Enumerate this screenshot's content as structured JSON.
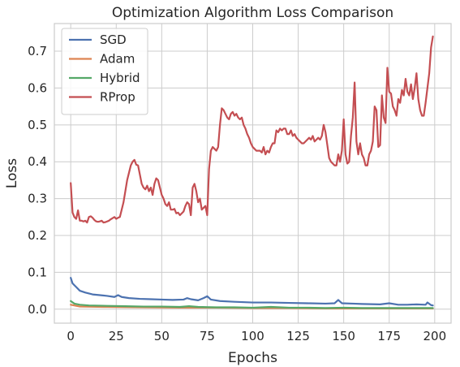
{
  "chart_data": {
    "type": "line",
    "title": "Optimization Algorithm Loss Comparison",
    "xlabel": "Epochs",
    "ylabel": "Loss",
    "xlim": [
      -9,
      209
    ],
    "ylim": [
      -0.038,
      0.775
    ],
    "xticks": [
      0,
      25,
      50,
      75,
      100,
      125,
      150,
      175,
      200
    ],
    "yticks": [
      0.0,
      0.1,
      0.2,
      0.3,
      0.4,
      0.5,
      0.6,
      0.7
    ],
    "ytick_labels": [
      "0.0",
      "0.1",
      "0.2",
      "0.3",
      "0.4",
      "0.5",
      "0.6",
      "0.7"
    ],
    "grid": true,
    "legend_position": "top-left",
    "series": [
      {
        "name": "SGD",
        "color": "#4c72b0",
        "points": [
          [
            0,
            0.085
          ],
          [
            1,
            0.07
          ],
          [
            3,
            0.06
          ],
          [
            5,
            0.05
          ],
          [
            8,
            0.045
          ],
          [
            12,
            0.04
          ],
          [
            16,
            0.038
          ],
          [
            20,
            0.036
          ],
          [
            24,
            0.033
          ],
          [
            26,
            0.038
          ],
          [
            28,
            0.033
          ],
          [
            32,
            0.03
          ],
          [
            38,
            0.028
          ],
          [
            44,
            0.027
          ],
          [
            50,
            0.026
          ],
          [
            56,
            0.025
          ],
          [
            62,
            0.026
          ],
          [
            64,
            0.03
          ],
          [
            66,
            0.027
          ],
          [
            70,
            0.024
          ],
          [
            73,
            0.03
          ],
          [
            75,
            0.035
          ],
          [
            77,
            0.026
          ],
          [
            82,
            0.022
          ],
          [
            90,
            0.02
          ],
          [
            100,
            0.018
          ],
          [
            110,
            0.018
          ],
          [
            120,
            0.017
          ],
          [
            130,
            0.016
          ],
          [
            140,
            0.015
          ],
          [
            145,
            0.016
          ],
          [
            147,
            0.025
          ],
          [
            149,
            0.016
          ],
          [
            155,
            0.015
          ],
          [
            160,
            0.014
          ],
          [
            170,
            0.013
          ],
          [
            175,
            0.016
          ],
          [
            180,
            0.012
          ],
          [
            185,
            0.012
          ],
          [
            190,
            0.013
          ],
          [
            195,
            0.012
          ],
          [
            196,
            0.018
          ],
          [
            198,
            0.011
          ],
          [
            199,
            0.01
          ]
        ]
      },
      {
        "name": "Adam",
        "color": "#dd8452",
        "points": [
          [
            0,
            0.012
          ],
          [
            5,
            0.007
          ],
          [
            20,
            0.006
          ],
          [
            40,
            0.005
          ],
          [
            60,
            0.004
          ],
          [
            80,
            0.004
          ],
          [
            100,
            0.003
          ],
          [
            120,
            0.003
          ],
          [
            140,
            0.002
          ],
          [
            160,
            0.002
          ],
          [
            180,
            0.002
          ],
          [
            199,
            0.002
          ]
        ]
      },
      {
        "name": "Hybrid",
        "color": "#55a868",
        "points": [
          [
            0,
            0.022
          ],
          [
            2,
            0.015
          ],
          [
            5,
            0.012
          ],
          [
            10,
            0.01
          ],
          [
            20,
            0.009
          ],
          [
            30,
            0.008
          ],
          [
            40,
            0.007
          ],
          [
            50,
            0.007
          ],
          [
            60,
            0.006
          ],
          [
            65,
            0.008
          ],
          [
            70,
            0.006
          ],
          [
            80,
            0.005
          ],
          [
            90,
            0.005
          ],
          [
            100,
            0.004
          ],
          [
            110,
            0.006
          ],
          [
            120,
            0.004
          ],
          [
            130,
            0.004
          ],
          [
            140,
            0.003
          ],
          [
            150,
            0.004
          ],
          [
            160,
            0.003
          ],
          [
            170,
            0.003
          ],
          [
            180,
            0.003
          ],
          [
            190,
            0.003
          ],
          [
            199,
            0.003
          ]
        ]
      },
      {
        "name": "RProp",
        "color": "#c44e52",
        "points": [
          [
            0,
            0.342
          ],
          [
            1,
            0.262
          ],
          [
            2,
            0.25
          ],
          [
            3,
            0.245
          ],
          [
            4,
            0.268
          ],
          [
            5,
            0.24
          ],
          [
            6,
            0.24
          ],
          [
            7,
            0.238
          ],
          [
            8,
            0.24
          ],
          [
            9,
            0.235
          ],
          [
            10,
            0.25
          ],
          [
            11,
            0.252
          ],
          [
            12,
            0.248
          ],
          [
            13,
            0.242
          ],
          [
            14,
            0.238
          ],
          [
            15,
            0.237
          ],
          [
            16,
            0.238
          ],
          [
            17,
            0.24
          ],
          [
            18,
            0.235
          ],
          [
            19,
            0.236
          ],
          [
            20,
            0.238
          ],
          [
            21,
            0.24
          ],
          [
            22,
            0.244
          ],
          [
            23,
            0.247
          ],
          [
            24,
            0.25
          ],
          [
            25,
            0.245
          ],
          [
            26,
            0.248
          ],
          [
            27,
            0.25
          ],
          [
            28,
            0.27
          ],
          [
            29,
            0.29
          ],
          [
            30,
            0.32
          ],
          [
            31,
            0.35
          ],
          [
            32,
            0.37
          ],
          [
            33,
            0.39
          ],
          [
            34,
            0.4
          ],
          [
            35,
            0.405
          ],
          [
            36,
            0.392
          ],
          [
            37,
            0.39
          ],
          [
            38,
            0.365
          ],
          [
            39,
            0.34
          ],
          [
            40,
            0.33
          ],
          [
            41,
            0.325
          ],
          [
            42,
            0.335
          ],
          [
            43,
            0.32
          ],
          [
            44,
            0.33
          ],
          [
            45,
            0.31
          ],
          [
            46,
            0.34
          ],
          [
            47,
            0.355
          ],
          [
            48,
            0.35
          ],
          [
            49,
            0.33
          ],
          [
            50,
            0.31
          ],
          [
            51,
            0.3
          ],
          [
            52,
            0.285
          ],
          [
            53,
            0.28
          ],
          [
            54,
            0.29
          ],
          [
            55,
            0.27
          ],
          [
            56,
            0.27
          ],
          [
            57,
            0.272
          ],
          [
            58,
            0.26
          ],
          [
            59,
            0.262
          ],
          [
            60,
            0.255
          ],
          [
            61,
            0.26
          ],
          [
            62,
            0.265
          ],
          [
            63,
            0.28
          ],
          [
            64,
            0.29
          ],
          [
            65,
            0.285
          ],
          [
            66,
            0.255
          ],
          [
            67,
            0.33
          ],
          [
            68,
            0.34
          ],
          [
            69,
            0.32
          ],
          [
            70,
            0.29
          ],
          [
            71,
            0.3
          ],
          [
            72,
            0.27
          ],
          [
            73,
            0.275
          ],
          [
            74,
            0.28
          ],
          [
            75,
            0.255
          ],
          [
            76,
            0.38
          ],
          [
            77,
            0.43
          ],
          [
            78,
            0.44
          ],
          [
            79,
            0.435
          ],
          [
            80,
            0.43
          ],
          [
            81,
            0.44
          ],
          [
            82,
            0.5
          ],
          [
            83,
            0.545
          ],
          [
            84,
            0.54
          ],
          [
            85,
            0.53
          ],
          [
            86,
            0.52
          ],
          [
            87,
            0.515
          ],
          [
            88,
            0.53
          ],
          [
            89,
            0.535
          ],
          [
            90,
            0.525
          ],
          [
            91,
            0.53
          ],
          [
            92,
            0.52
          ],
          [
            93,
            0.515
          ],
          [
            94,
            0.52
          ],
          [
            95,
            0.5
          ],
          [
            96,
            0.49
          ],
          [
            97,
            0.475
          ],
          [
            98,
            0.465
          ],
          [
            99,
            0.45
          ],
          [
            100,
            0.44
          ],
          [
            101,
            0.435
          ],
          [
            102,
            0.43
          ],
          [
            103,
            0.43
          ],
          [
            104,
            0.43
          ],
          [
            105,
            0.425
          ],
          [
            106,
            0.44
          ],
          [
            107,
            0.42
          ],
          [
            108,
            0.43
          ],
          [
            109,
            0.425
          ],
          [
            110,
            0.44
          ],
          [
            111,
            0.45
          ],
          [
            112,
            0.45
          ],
          [
            113,
            0.485
          ],
          [
            114,
            0.48
          ],
          [
            115,
            0.49
          ],
          [
            116,
            0.485
          ],
          [
            117,
            0.49
          ],
          [
            118,
            0.49
          ],
          [
            119,
            0.475
          ],
          [
            120,
            0.475
          ],
          [
            121,
            0.485
          ],
          [
            122,
            0.47
          ],
          [
            123,
            0.475
          ],
          [
            124,
            0.465
          ],
          [
            125,
            0.46
          ],
          [
            126,
            0.455
          ],
          [
            127,
            0.45
          ],
          [
            128,
            0.45
          ],
          [
            129,
            0.455
          ],
          [
            130,
            0.46
          ],
          [
            131,
            0.465
          ],
          [
            132,
            0.46
          ],
          [
            133,
            0.47
          ],
          [
            134,
            0.455
          ],
          [
            135,
            0.46
          ],
          [
            136,
            0.465
          ],
          [
            137,
            0.46
          ],
          [
            138,
            0.47
          ],
          [
            139,
            0.5
          ],
          [
            140,
            0.48
          ],
          [
            141,
            0.445
          ],
          [
            142,
            0.41
          ],
          [
            143,
            0.4
          ],
          [
            144,
            0.395
          ],
          [
            145,
            0.39
          ],
          [
            146,
            0.39
          ],
          [
            147,
            0.42
          ],
          [
            148,
            0.4
          ],
          [
            149,
            0.43
          ],
          [
            150,
            0.515
          ],
          [
            151,
            0.42
          ],
          [
            152,
            0.395
          ],
          [
            153,
            0.4
          ],
          [
            154,
            0.47
          ],
          [
            155,
            0.52
          ],
          [
            156,
            0.615
          ],
          [
            157,
            0.455
          ],
          [
            158,
            0.42
          ],
          [
            159,
            0.45
          ],
          [
            160,
            0.42
          ],
          [
            161,
            0.41
          ],
          [
            162,
            0.39
          ],
          [
            163,
            0.39
          ],
          [
            164,
            0.42
          ],
          [
            165,
            0.43
          ],
          [
            166,
            0.455
          ],
          [
            167,
            0.55
          ],
          [
            168,
            0.54
          ],
          [
            169,
            0.44
          ],
          [
            170,
            0.445
          ],
          [
            171,
            0.58
          ],
          [
            172,
            0.52
          ],
          [
            173,
            0.505
          ],
          [
            174,
            0.655
          ],
          [
            175,
            0.59
          ],
          [
            176,
            0.585
          ],
          [
            177,
            0.55
          ],
          [
            178,
            0.54
          ],
          [
            179,
            0.525
          ],
          [
            180,
            0.57
          ],
          [
            181,
            0.56
          ],
          [
            182,
            0.595
          ],
          [
            183,
            0.58
          ],
          [
            184,
            0.625
          ],
          [
            185,
            0.59
          ],
          [
            186,
            0.58
          ],
          [
            187,
            0.61
          ],
          [
            188,
            0.57
          ],
          [
            189,
            0.6
          ],
          [
            190,
            0.64
          ],
          [
            191,
            0.57
          ],
          [
            192,
            0.54
          ],
          [
            193,
            0.525
          ],
          [
            194,
            0.525
          ],
          [
            195,
            0.56
          ],
          [
            196,
            0.6
          ],
          [
            197,
            0.64
          ],
          [
            198,
            0.71
          ],
          [
            199,
            0.74
          ]
        ]
      }
    ]
  }
}
